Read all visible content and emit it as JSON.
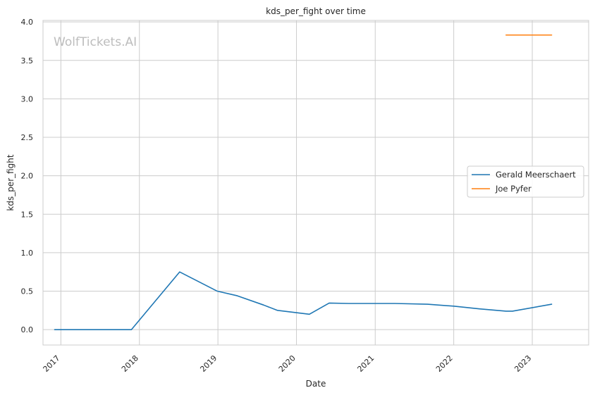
{
  "chart_data": {
    "type": "line",
    "title": "kds_per_fight over time",
    "xlabel": "Date",
    "ylabel": "kds_per_fight",
    "watermark": "WolfTickets.AI",
    "xlim": [
      "2016-10-10",
      "2023-09-20"
    ],
    "ylim": [
      -0.2,
      4.02
    ],
    "x_ticks": [
      "2017-01-01",
      "2018-01-01",
      "2019-01-01",
      "2020-01-01",
      "2021-01-01",
      "2022-01-01",
      "2023-01-01"
    ],
    "x_tick_labels": [
      "2017",
      "2018",
      "2019",
      "2020",
      "2021",
      "2022",
      "2023"
    ],
    "y_ticks": [
      0.0,
      0.5,
      1.0,
      1.5,
      2.0,
      2.5,
      3.0,
      3.5,
      4.0
    ],
    "y_tick_labels": [
      "0.0",
      "0.5",
      "1.0",
      "1.5",
      "2.0",
      "2.5",
      "3.0",
      "3.5",
      "4.0"
    ],
    "grid": true,
    "legend_position": "center-right",
    "series": [
      {
        "name": "Gerald Meerschaert",
        "color": "#1f77b4",
        "x": [
          "2016-12-03",
          "2017-11-25",
          "2018-07-07",
          "2018-12-29",
          "2019-04-01",
          "2019-08-01",
          "2019-10-05",
          "2020-03-01",
          "2020-06-01",
          "2020-09-01",
          "2021-04-01",
          "2021-09-01",
          "2022-01-01",
          "2022-05-01",
          "2022-09-01",
          "2022-10-01",
          "2023-04-01"
        ],
        "y": [
          0.0,
          0.0,
          0.75,
          0.5,
          0.44,
          0.32,
          0.25,
          0.2,
          0.345,
          0.34,
          0.34,
          0.33,
          0.305,
          0.27,
          0.24,
          0.24,
          0.33
        ]
      },
      {
        "name": "Joe Pyfer",
        "color": "#ff7f0e",
        "x": [
          "2022-09-01",
          "2023-04-01"
        ],
        "y": [
          3.83,
          3.83
        ]
      }
    ]
  }
}
